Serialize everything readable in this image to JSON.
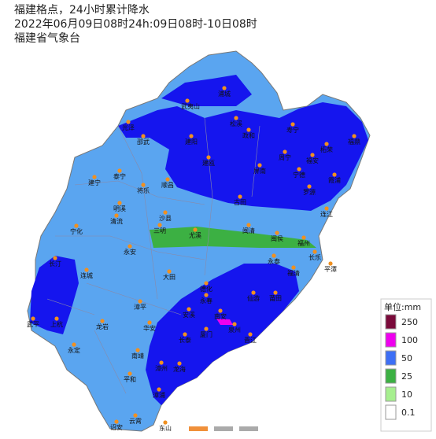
{
  "header": {
    "lines": [
      "福建格点，24小时累计降水",
      "2022年06月09日08时24h:09日08时-10日08时",
      "福建省气象台"
    ]
  },
  "cities": [
    "浦城",
    "武夷山",
    "光泽",
    "松溪",
    "政和",
    "寿宁",
    "建阳",
    "邵武",
    "柘荣",
    "福鼎",
    "周宁",
    "福安",
    "霞浦",
    "建瓯",
    "屏南",
    "泰宁",
    "建宁",
    "将乐",
    "顺昌",
    "古田",
    "罗源",
    "宁德",
    "连江",
    "明溪",
    "清流",
    "宁化",
    "三明",
    "沙县",
    "尤溪",
    "闽清",
    "闽侯",
    "福州",
    "长乐",
    "永泰",
    "福清",
    "平潭",
    "永安",
    "长汀",
    "连城",
    "大田",
    "德化",
    "永春",
    "仙游",
    "莆田",
    "漳平",
    "上杭",
    "龙岩",
    "安溪",
    "南安",
    "晋江",
    "泉州",
    "厦门",
    "华安",
    "武平",
    "永定",
    "南靖",
    "长泰",
    "漳州",
    "龙海",
    "平和",
    "漳浦",
    "云霄",
    "东山",
    "诏安"
  ],
  "legend": {
    "title": "单位:mm",
    "labels": [
      250,
      100,
      50,
      25,
      10,
      0.1
    ],
    "colors": [
      "#7a0a3a",
      "#ee00ee",
      "#3d6ff5",
      "#3cb043",
      "#a6ef8f",
      "#ffffff"
    ]
  }
}
